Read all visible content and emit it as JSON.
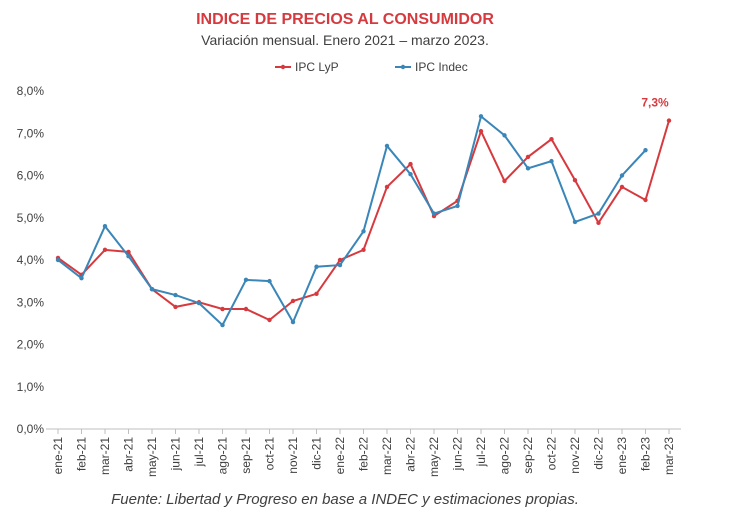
{
  "chart_data": {
    "type": "line",
    "title": "INDICE DE PRECIOS AL CONSUMIDOR",
    "subtitle": "Variación mensual. Enero 2021 – marzo 2023.",
    "source": "Fuente: Libertad y Progreso en base a INDEC y estimaciones propias.",
    "categories": [
      "ene-21",
      "feb-21",
      "mar-21",
      "abr-21",
      "may-21",
      "jun-21",
      "jul-21",
      "ago-21",
      "sep-21",
      "oct-21",
      "nov-21",
      "dic-21",
      "ene-22",
      "feb-22",
      "mar-22",
      "abr-22",
      "may-22",
      "jun-22",
      "jul-22",
      "ago-22",
      "sep-22",
      "oct-22",
      "nov-22",
      "dic-22",
      "ene-23",
      "feb-23",
      "mar-23"
    ],
    "series": [
      {
        "name": "IPC LyP",
        "color": "#d63a3f",
        "values": [
          4.05,
          3.65,
          4.24,
          4.19,
          3.31,
          2.89,
          3.0,
          2.84,
          2.84,
          2.58,
          3.03,
          3.2,
          4.0,
          4.24,
          5.73,
          6.27,
          5.04,
          5.4,
          7.05,
          5.87,
          6.44,
          6.86,
          5.89,
          4.88,
          5.73,
          5.42,
          7.3
        ],
        "value_labels": [
          null,
          null,
          null,
          null,
          null,
          null,
          null,
          null,
          null,
          null,
          null,
          null,
          null,
          null,
          null,
          null,
          null,
          null,
          null,
          null,
          null,
          null,
          null,
          null,
          null,
          null,
          "7,3%"
        ]
      },
      {
        "name": "IPC Indec",
        "color": "#3a86b8",
        "values": [
          4.0,
          3.57,
          4.8,
          4.09,
          3.31,
          3.17,
          2.98,
          2.46,
          3.53,
          3.5,
          2.53,
          3.84,
          3.88,
          4.68,
          6.7,
          6.03,
          5.1,
          5.28,
          7.4,
          6.95,
          6.17,
          6.34,
          4.9,
          5.1,
          6.0,
          6.6,
          null
        ]
      }
    ],
    "ylim": [
      0,
      8
    ],
    "yticks": [
      {
        "value": 0,
        "label": "0,0%"
      },
      {
        "value": 1,
        "label": "1,0%"
      },
      {
        "value": 2,
        "label": "2,0%"
      },
      {
        "value": 3,
        "label": "3,0%"
      },
      {
        "value": 4,
        "label": "4,0%"
      },
      {
        "value": 5,
        "label": "5,0%"
      },
      {
        "value": 6,
        "label": "6,0%"
      },
      {
        "value": 7,
        "label": "7,0%"
      },
      {
        "value": 8,
        "label": "8,0%"
      }
    ],
    "grid": false,
    "legend": "top"
  }
}
